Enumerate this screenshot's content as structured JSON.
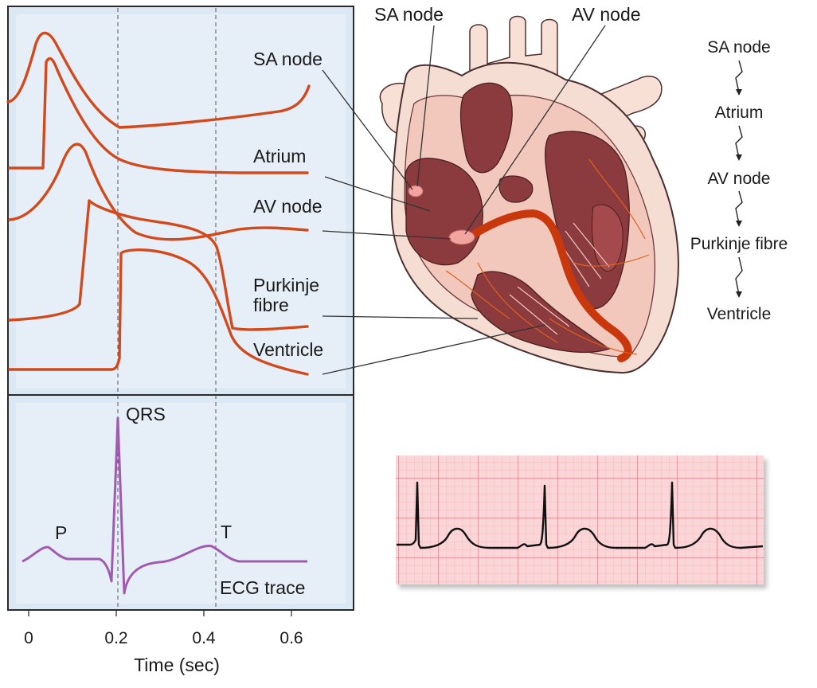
{
  "action_potential_panel": {
    "labels": [
      "SA node",
      "Atrium",
      "AV node",
      "Purkinje fibre",
      "Ventricle"
    ],
    "purkinje_line1": "Purkinje",
    "purkinje_line2": "fibre"
  },
  "ecg_panel": {
    "wave_labels": {
      "p": "P",
      "qrs": "QRS",
      "t": "T"
    },
    "trace_label": "ECG trace"
  },
  "x_axis": {
    "title": "Time (sec)",
    "ticks": [
      "0",
      "0.2",
      "0.4",
      "0.6"
    ]
  },
  "heart": {
    "sa_label": "SA node",
    "av_label": "AV node"
  },
  "conduction_sequence": [
    "SA node",
    "Atrium",
    "AV node",
    "Purkinje fibre",
    "Ventricle"
  ],
  "colors": {
    "panel_bg": "#dce8f4",
    "trace": "#d24a1c",
    "ecg": "#a05ab0",
    "heart_muscle": "#8b3a3e",
    "heart_outer": "#f6ddd3",
    "strip_bg": "#f9d6d8"
  }
}
